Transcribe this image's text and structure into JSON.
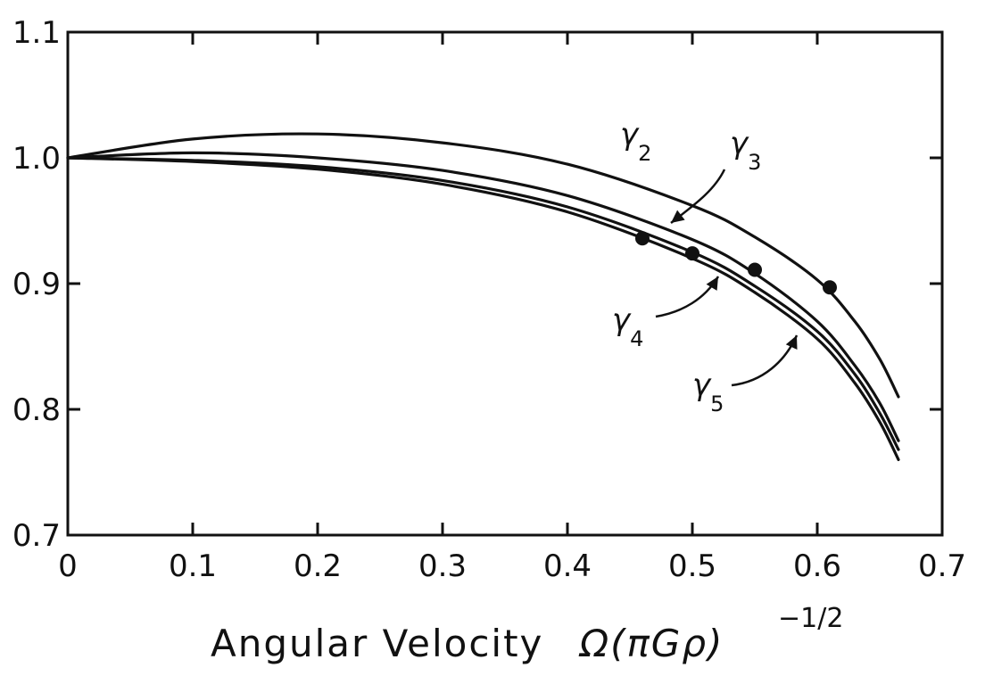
{
  "chart_data": {
    "type": "line",
    "title": "",
    "xlabel": "Angular Velocity",
    "xlabel_math": "Ω(πGρ)",
    "xlabel_exponent": "−1/2",
    "ylabel": "",
    "xlim": [
      0,
      0.7
    ],
    "ylim": [
      0.7,
      1.1
    ],
    "x_ticks": [
      "0",
      "0.1",
      "0.2",
      "0.3",
      "0.4",
      "0.5",
      "0.6",
      "0.7"
    ],
    "y_ticks": [
      "0.7",
      "0.8",
      "0.9",
      "1.0",
      "1.1"
    ],
    "grid": false,
    "legend": "inline labels with arrows",
    "series": [
      {
        "name": "γ2",
        "label_symbol": "γ",
        "label_sub": "2",
        "x": [
          0,
          0.1,
          0.2,
          0.3,
          0.4,
          0.5,
          0.55,
          0.6,
          0.63,
          0.65,
          0.665
        ],
        "y": [
          1.0,
          1.015,
          1.019,
          1.012,
          0.995,
          0.962,
          0.937,
          0.903,
          0.87,
          0.84,
          0.81
        ]
      },
      {
        "name": "γ3",
        "label_symbol": "γ",
        "label_sub": "3",
        "x": [
          0,
          0.1,
          0.2,
          0.3,
          0.4,
          0.5,
          0.55,
          0.6,
          0.63,
          0.65,
          0.665
        ],
        "y": [
          1.0,
          1.004,
          1.0,
          0.99,
          0.97,
          0.935,
          0.908,
          0.87,
          0.835,
          0.805,
          0.775
        ]
      },
      {
        "name": "γ4",
        "label_symbol": "γ",
        "label_sub": "4",
        "x": [
          0,
          0.1,
          0.2,
          0.3,
          0.4,
          0.5,
          0.55,
          0.6,
          0.63,
          0.65,
          0.665
        ],
        "y": [
          1.0,
          0.998,
          0.993,
          0.982,
          0.961,
          0.925,
          0.898,
          0.862,
          0.828,
          0.797,
          0.768
        ]
      },
      {
        "name": "γ5",
        "label_symbol": "γ",
        "label_sub": "5",
        "x": [
          0,
          0.1,
          0.2,
          0.3,
          0.4,
          0.5,
          0.55,
          0.6,
          0.63,
          0.65,
          0.665
        ],
        "y": [
          1.0,
          0.997,
          0.991,
          0.979,
          0.957,
          0.92,
          0.893,
          0.856,
          0.821,
          0.79,
          0.76
        ]
      }
    ],
    "points": {
      "x": [
        0.46,
        0.5,
        0.55,
        0.61
      ],
      "y": [
        0.936,
        0.924,
        0.911,
        0.897
      ]
    },
    "colors": {
      "line": "#111111",
      "background": "#ffffff"
    }
  }
}
